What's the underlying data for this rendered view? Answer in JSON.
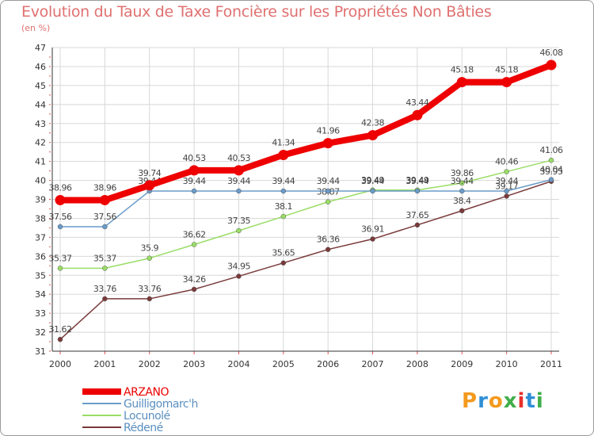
{
  "title": "Evolution du Taux de Taxe Foncière sur les Propriétés Non Bâties",
  "subtitle": "(en %)",
  "logo": {
    "letters": [
      "P",
      "r",
      "o",
      "x",
      "i",
      "t",
      "i"
    ],
    "colors": [
      "#f39a1e",
      "#2f8fd6",
      "#f39a1e",
      "#3fae49",
      "#e8312a",
      "#2f8fd6",
      "#3fae49"
    ]
  },
  "chart_data": {
    "type": "line",
    "x": [
      "2000",
      "2001",
      "2002",
      "2003",
      "2004",
      "2005",
      "2006",
      "2007",
      "2008",
      "2009",
      "2010",
      "2011"
    ],
    "ylim": [
      31,
      47
    ],
    "yticks": [
      "31",
      "32",
      "33",
      "34",
      "35",
      "36",
      "37",
      "38",
      "39",
      "40",
      "41",
      "42",
      "43",
      "44",
      "45",
      "46",
      "47"
    ],
    "grid": true,
    "legend_position": "bottom-left",
    "series": [
      {
        "name": "ARZANO",
        "color": "#ee0000",
        "values": [
          38.96,
          38.96,
          39.74,
          40.53,
          40.53,
          41.34,
          41.96,
          42.38,
          43.44,
          45.18,
          45.18,
          46.08
        ],
        "labels": [
          "38.96",
          "38.96",
          "39.74",
          "40.53",
          "40.53",
          "41.34",
          "41.96",
          "42.38",
          "43.44",
          "45.18",
          "45.18",
          "46.08"
        ]
      },
      {
        "name": "Guilligomarc'h",
        "color": "#6a9bc8",
        "values": [
          37.56,
          37.56,
          39.44,
          39.44,
          39.44,
          39.44,
          39.44,
          39.44,
          39.44,
          39.44,
          39.44,
          40.04
        ],
        "labels": [
          "37.56",
          "37.56",
          "39.44",
          "39.44",
          "39.44",
          "39.44",
          "39.44",
          "39.44",
          "39.44",
          "39.44",
          "39.44",
          "40.04"
        ]
      },
      {
        "name": "Locunolé",
        "color": "#99dd66",
        "values": [
          35.37,
          35.37,
          35.9,
          36.62,
          37.35,
          38.1,
          38.87,
          39.49,
          39.49,
          39.86,
          40.46,
          41.06
        ],
        "labels": [
          "35.37",
          "35.37",
          "35.9",
          "36.62",
          "37.35",
          "38.1",
          "38.87",
          "39.49",
          "39.49",
          "39.86",
          "40.46",
          "41.06"
        ]
      },
      {
        "name": "Rédené",
        "color": "#7a3a3a",
        "values": [
          31.62,
          33.76,
          33.76,
          34.26,
          34.95,
          35.65,
          36.36,
          36.91,
          37.65,
          38.4,
          39.17,
          39.95
        ],
        "labels": [
          "31.62",
          "33.76",
          "33.76",
          "34.26",
          "34.95",
          "35.65",
          "36.36",
          "36.91",
          "37.65",
          "38.4",
          "39.17",
          "39.95"
        ]
      }
    ]
  }
}
